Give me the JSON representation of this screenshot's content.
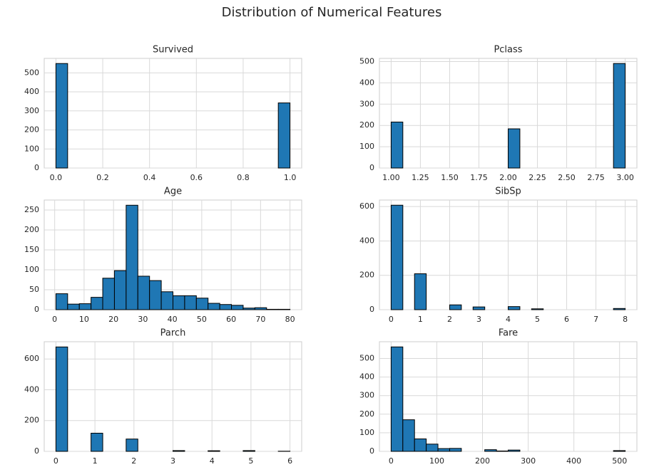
{
  "title": "Distribution of Numerical Features",
  "chart_data": [
    {
      "type": "histogram",
      "title": "Survived",
      "color": "#1f77b4",
      "edgecolor": "#000000",
      "grid": true,
      "bins": [
        0.0,
        0.05,
        0.1,
        0.15,
        0.2,
        0.25,
        0.3,
        0.35,
        0.4,
        0.45,
        0.5,
        0.55,
        0.6,
        0.65,
        0.7,
        0.75,
        0.8,
        0.85,
        0.9,
        0.95,
        1.0
      ],
      "values": [
        549,
        0,
        0,
        0,
        0,
        0,
        0,
        0,
        0,
        0,
        0,
        0,
        0,
        0,
        0,
        0,
        0,
        0,
        0,
        342
      ],
      "xlim": [
        -0.05,
        1.05
      ],
      "ylim": [
        0,
        576
      ],
      "xticks": [
        {
          "value": 0,
          "label": "0.0"
        },
        0.2,
        0.4,
        0.6,
        0.8,
        {
          "value": 1,
          "label": "1.0"
        }
      ],
      "yticks": [
        0,
        100,
        200,
        300,
        400,
        500
      ]
    },
    {
      "type": "histogram",
      "title": "Pclass",
      "color": "#1f77b4",
      "edgecolor": "#000000",
      "grid": true,
      "bins": [
        1.0,
        1.1,
        1.2,
        1.3,
        1.4,
        1.5,
        1.6,
        1.7,
        1.8,
        1.9,
        2.0,
        2.1,
        2.2,
        2.3,
        2.4,
        2.5,
        2.6,
        2.7,
        2.8,
        2.9,
        3.0
      ],
      "values": [
        216,
        0,
        0,
        0,
        0,
        0,
        0,
        0,
        0,
        0,
        184,
        0,
        0,
        0,
        0,
        0,
        0,
        0,
        0,
        491
      ],
      "xlim": [
        0.9,
        3.1
      ],
      "ylim": [
        0,
        515
      ],
      "xticks": [
        {
          "value": 1,
          "label": "1.00"
        },
        1.25,
        {
          "value": 1.5,
          "label": "1.50"
        },
        1.75,
        {
          "value": 2,
          "label": "2.00"
        },
        2.25,
        {
          "value": 2.5,
          "label": "2.50"
        },
        2.75,
        {
          "value": 3,
          "label": "3.00"
        }
      ],
      "yticks": [
        0,
        100,
        200,
        300,
        400,
        500
      ]
    },
    {
      "type": "histogram",
      "title": "Age",
      "color": "#1f77b4",
      "edgecolor": "#000000",
      "grid": true,
      "bins": [
        0.42,
        4.399,
        8.378,
        12.357,
        16.336,
        20.315,
        24.294,
        28.273,
        32.252,
        36.231,
        40.21,
        44.189,
        48.168,
        52.147,
        56.126,
        60.105,
        64.084,
        68.063,
        72.042,
        76.021,
        80.0
      ],
      "values": [
        40,
        14,
        15,
        31,
        79,
        98,
        262,
        84,
        73,
        45,
        35,
        35,
        29,
        16,
        13,
        11,
        4,
        5,
        1,
        1
      ],
      "xlim": [
        -3.56,
        83.98
      ],
      "ylim": [
        0,
        275
      ],
      "xticks": [
        0,
        10,
        20,
        30,
        40,
        50,
        60,
        70,
        80
      ],
      "yticks": [
        0,
        50,
        100,
        150,
        200,
        250
      ]
    },
    {
      "type": "histogram",
      "title": "SibSp",
      "color": "#1f77b4",
      "edgecolor": "#000000",
      "grid": true,
      "bins": [
        0.0,
        0.4,
        0.8,
        1.2,
        1.6,
        2.0,
        2.4,
        2.8,
        3.2,
        3.6,
        4.0,
        4.4,
        4.8,
        5.2,
        5.6,
        6.0,
        6.4,
        6.8,
        7.2,
        7.6,
        8.0
      ],
      "values": [
        608,
        0,
        209,
        0,
        0,
        28,
        0,
        16,
        0,
        0,
        18,
        0,
        5,
        0,
        0,
        0,
        0,
        0,
        0,
        7
      ],
      "xlim": [
        -0.4,
        8.4
      ],
      "ylim": [
        0,
        638
      ],
      "xticks": [
        0,
        1,
        2,
        3,
        4,
        5,
        6,
        7,
        8
      ],
      "yticks": [
        0,
        200,
        400,
        600
      ]
    },
    {
      "type": "histogram",
      "title": "Parch",
      "color": "#1f77b4",
      "edgecolor": "#000000",
      "grid": true,
      "bins": [
        0.0,
        0.3,
        0.6,
        0.9,
        1.2,
        1.5,
        1.8,
        2.1,
        2.4,
        2.7,
        3.0,
        3.3,
        3.6,
        3.9,
        4.2,
        4.5,
        4.8,
        5.1,
        5.4,
        5.7,
        6.0
      ],
      "values": [
        678,
        0,
        0,
        118,
        0,
        0,
        80,
        0,
        0,
        0,
        5,
        0,
        0,
        4,
        0,
        0,
        5,
        0,
        0,
        1
      ],
      "xlim": [
        -0.3,
        6.3
      ],
      "ylim": [
        0,
        712
      ],
      "xticks": [
        0,
        1,
        2,
        3,
        4,
        5,
        6
      ],
      "yticks": [
        0,
        200,
        400,
        600
      ]
    },
    {
      "type": "histogram",
      "title": "Fare",
      "color": "#1f77b4",
      "edgecolor": "#000000",
      "grid": true,
      "bins": [
        0.0,
        25.616,
        51.233,
        76.849,
        102.466,
        128.082,
        153.699,
        179.315,
        204.932,
        230.548,
        256.165,
        281.781,
        307.398,
        333.014,
        358.63,
        384.247,
        409.863,
        435.48,
        461.096,
        486.713,
        512.329
      ],
      "values": [
        562,
        170,
        67,
        39,
        15,
        16,
        0,
        0,
        9,
        2,
        7,
        0,
        0,
        0,
        0,
        0,
        0,
        0,
        0,
        4
      ],
      "xlim": [
        -25.6,
        537.9
      ],
      "ylim": [
        0,
        590
      ],
      "xticks": [
        0,
        100,
        200,
        300,
        400,
        500
      ],
      "yticks": [
        0,
        100,
        200,
        300,
        400,
        500
      ]
    }
  ]
}
